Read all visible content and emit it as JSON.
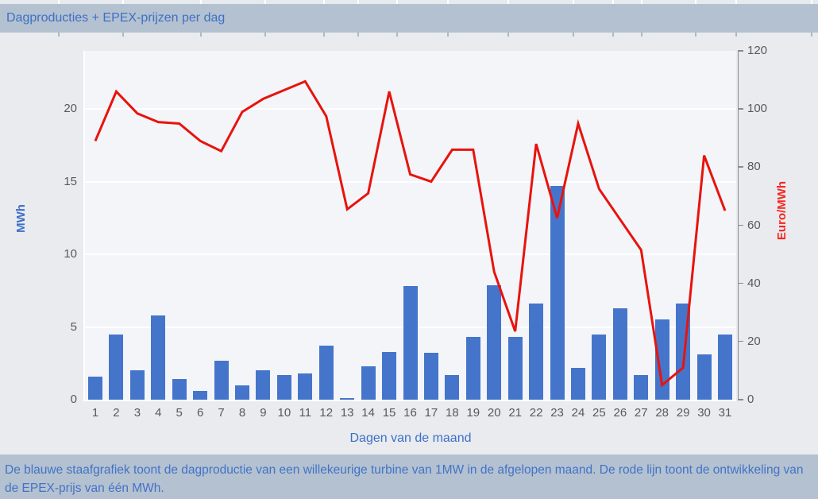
{
  "header": {
    "title": "Dagproducties + EPEX-prijzen per dag"
  },
  "footer": {
    "caption": "De blauwe staafgrafiek toont de dagproductie van een willekeurige turbine van 1MW in de afgelopen maand. De rode lijn toont de ontwikkeling van de EPEX-prijs van één MWh."
  },
  "colors": {
    "accent_blue": "#3E70C6",
    "bar_blue": "#4575CB",
    "line_red": "#E8130D",
    "header_bg": "#B4C1D0",
    "page_bg": "#E9EBEF",
    "plot_bg": "#F3F5F9",
    "tick_label_gray": "#595959",
    "gridline_white": "#FFFFFF"
  },
  "chart_data": {
    "type": "combo",
    "title": "Dagproducties + EPEX-prijzen per dag",
    "xlabel": "Dagen van de maand",
    "ylabel_left": "MWh",
    "ylabel_right": "Euro/MWh",
    "ylim_left": [
      0,
      24
    ],
    "ylim_right": [
      0,
      120
    ],
    "yticks_left": [
      0,
      5,
      10,
      15,
      20
    ],
    "yticks_right": [
      0,
      20,
      40,
      60,
      80,
      100,
      120
    ],
    "grid": "horizontal white lines at left-axis ticks",
    "legend": "none",
    "categories": [
      1,
      2,
      3,
      4,
      5,
      6,
      7,
      8,
      9,
      10,
      11,
      12,
      13,
      14,
      15,
      16,
      17,
      18,
      19,
      20,
      21,
      22,
      23,
      24,
      25,
      26,
      27,
      28,
      29,
      30,
      31
    ],
    "series": [
      {
        "name": "Dagproductie",
        "type": "bar",
        "axis": "left",
        "unit": "MWh",
        "color": "#4575CB",
        "values": [
          1.6,
          4.5,
          2.0,
          5.8,
          1.4,
          0.6,
          2.7,
          1.0,
          2.0,
          1.7,
          1.8,
          3.7,
          0.1,
          2.3,
          3.3,
          7.8,
          3.2,
          1.7,
          4.3,
          7.9,
          4.3,
          6.6,
          14.7,
          2.2,
          4.5,
          6.3,
          1.7,
          5.5,
          6.6,
          3.1,
          4.5
        ]
      },
      {
        "name": "EPEX-prijs",
        "type": "line",
        "axis": "right",
        "unit": "Euro/MWh",
        "color": "#E8130D",
        "values": [
          89,
          106,
          98.5,
          95.5,
          95,
          89,
          85.5,
          99,
          103.5,
          106.5,
          109.5,
          97.5,
          65.5,
          71,
          106,
          77.5,
          75,
          86,
          86,
          44,
          23.5,
          88,
          62.5,
          95,
          72.5,
          62,
          51.5,
          5,
          11,
          84,
          65
        ]
      }
    ]
  }
}
